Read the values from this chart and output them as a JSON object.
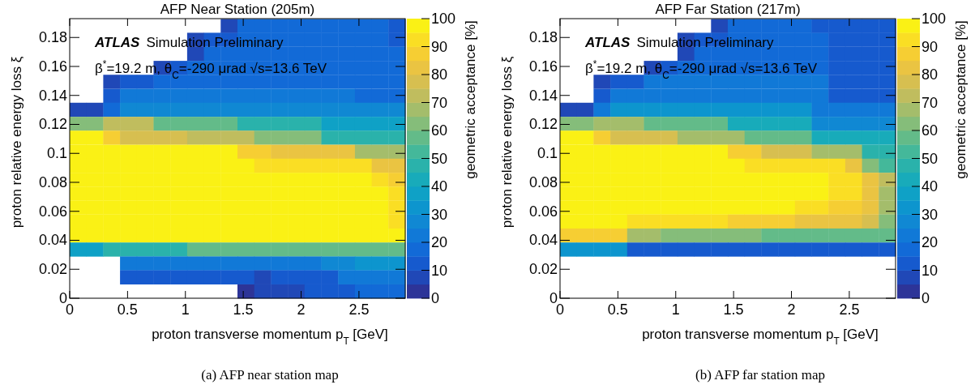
{
  "chart_data": [
    {
      "type": "heatmap",
      "title": "AFP Near Station (205m)",
      "xlabel": "proton transverse momentum p$_{T}$ [GeV]",
      "ylabel": "proton relative energy loss ξ",
      "clabel": "geometric acceptance [%]",
      "annotations": [
        "ATLAS Simulation Preliminary",
        "β$^{*}$=19.2 m, θ$_{C}$=-290 μrad   √s=13.6 TeV",
        "(a) AFP near station map"
      ],
      "xlim": [
        0,
        2.9
      ],
      "xticks": [
        0,
        0.5,
        1,
        1.5,
        2,
        2.5
      ],
      "ylim": [
        0,
        0.193
      ],
      "yticks": [
        0,
        0.02,
        0.04,
        0.06,
        0.08,
        0.1,
        0.12,
        0.14,
        0.16,
        0.18
      ],
      "clim": [
        0,
        100
      ],
      "cticks": [
        0,
        10,
        20,
        30,
        40,
        50,
        60,
        70,
        80,
        90,
        100
      ],
      "x": [
        0.0725,
        0.2175,
        0.3625,
        0.5075,
        0.6525,
        0.7975,
        0.9425,
        1.0875,
        1.2325,
        1.3775,
        1.5225,
        1.6675,
        1.8125,
        1.9575,
        2.1025,
        2.2475,
        2.3925,
        2.5375,
        2.6825,
        2.8275
      ],
      "y": [
        0.188,
        0.1785,
        0.1688,
        0.1591,
        0.1495,
        0.1398,
        0.1302,
        0.1205,
        0.1109,
        0.1012,
        0.0916,
        0.0819,
        0.0723,
        0.0627,
        0.053,
        0.0434,
        0.0337,
        0.0241,
        0.0145,
        0.0048
      ],
      "cells": [
        [
          null,
          null,
          null,
          null,
          null,
          null,
          null,
          null,
          null,
          5,
          15,
          15,
          15,
          15,
          15,
          15,
          15,
          15,
          15,
          12
        ],
        [
          null,
          null,
          null,
          null,
          null,
          null,
          null,
          8,
          12,
          12,
          15,
          15,
          15,
          15,
          15,
          15,
          15,
          15,
          15,
          12
        ],
        [
          null,
          null,
          null,
          null,
          null,
          null,
          null,
          8,
          15,
          15,
          15,
          15,
          15,
          15,
          15,
          15,
          15,
          15,
          15,
          15
        ],
        [
          null,
          null,
          null,
          null,
          null,
          8,
          12,
          18,
          18,
          18,
          18,
          18,
          18,
          18,
          18,
          18,
          18,
          18,
          18,
          15
        ],
        [
          null,
          null,
          5,
          10,
          12,
          18,
          18,
          18,
          18,
          18,
          18,
          18,
          18,
          18,
          18,
          18,
          18,
          18,
          15,
          15
        ],
        [
          null,
          null,
          10,
          20,
          20,
          20,
          20,
          20,
          20,
          20,
          20,
          20,
          20,
          20,
          20,
          20,
          20,
          17,
          17,
          17
        ],
        [
          8,
          8,
          18,
          28,
          28,
          28,
          28,
          28,
          28,
          28,
          28,
          28,
          28,
          28,
          28,
          28,
          28,
          28,
          28,
          28
        ],
        [
          60,
          60,
          70,
          70,
          70,
          55,
          55,
          55,
          55,
          55,
          45,
          45,
          45,
          45,
          45,
          35,
          35,
          35,
          35,
          35
        ],
        [
          100,
          100,
          88,
          78,
          78,
          78,
          78,
          70,
          70,
          70,
          70,
          60,
          60,
          60,
          60,
          48,
          48,
          48,
          48,
          48
        ],
        [
          100,
          100,
          100,
          100,
          100,
          100,
          95,
          95,
          95,
          95,
          88,
          88,
          80,
          80,
          80,
          80,
          80,
          68,
          68,
          68
        ],
        [
          100,
          100,
          100,
          100,
          100,
          100,
          100,
          100,
          100,
          100,
          100,
          93,
          93,
          93,
          93,
          93,
          93,
          93,
          80,
          80
        ],
        [
          100,
          100,
          100,
          100,
          100,
          100,
          100,
          100,
          100,
          100,
          100,
          100,
          100,
          100,
          100,
          100,
          100,
          98,
          93,
          88
        ],
        [
          100,
          100,
          100,
          100,
          100,
          100,
          100,
          100,
          100,
          100,
          100,
          100,
          100,
          100,
          100,
          100,
          100,
          100,
          97,
          92
        ],
        [
          100,
          100,
          100,
          100,
          100,
          100,
          100,
          100,
          100,
          100,
          100,
          100,
          100,
          100,
          100,
          100,
          100,
          100,
          97,
          92
        ],
        [
          100,
          100,
          100,
          100,
          100,
          100,
          100,
          100,
          100,
          100,
          100,
          100,
          100,
          100,
          100,
          100,
          100,
          100,
          97,
          92
        ],
        [
          95,
          95,
          95,
          95,
          95,
          95,
          95,
          95,
          95,
          95,
          95,
          95,
          95,
          95,
          95,
          95,
          95,
          95,
          95,
          95
        ],
        [
          35,
          35,
          45,
          45,
          45,
          45,
          45,
          55,
          55,
          55,
          55,
          55,
          55,
          55,
          55,
          55,
          55,
          55,
          55,
          55
        ],
        [
          null,
          null,
          null,
          20,
          20,
          20,
          20,
          20,
          20,
          20,
          20,
          20,
          20,
          20,
          20,
          25,
          25,
          30,
          30,
          30
        ],
        [
          null,
          null,
          null,
          10,
          10,
          10,
          10,
          10,
          10,
          10,
          10,
          8,
          14,
          14,
          14,
          14,
          22,
          22,
          22,
          22
        ],
        [
          null,
          null,
          null,
          null,
          null,
          null,
          null,
          null,
          null,
          null,
          4,
          6,
          6,
          6,
          12,
          12,
          12,
          18,
          18,
          18
        ]
      ]
    },
    {
      "type": "heatmap",
      "title": "AFP Far Station (217m)",
      "xlabel": "proton transverse momentum p$_{T}$ [GeV]",
      "ylabel": "proton relative energy loss ξ",
      "clabel": "geometric acceptance [%]",
      "annotations": [
        "ATLAS Simulation Preliminary",
        "β$^{*}$=19.2 m, θ$_{C}$=-290 μrad   √s=13.6 TeV",
        "(b) AFP far station map"
      ],
      "xlim": [
        0,
        2.9
      ],
      "xticks": [
        0,
        0.5,
        1,
        1.5,
        2,
        2.5
      ],
      "ylim": [
        0,
        0.193
      ],
      "yticks": [
        0,
        0.02,
        0.04,
        0.06,
        0.08,
        0.1,
        0.12,
        0.14,
        0.16,
        0.18
      ],
      "clim": [
        0,
        100
      ],
      "cticks": [
        0,
        10,
        20,
        30,
        40,
        50,
        60,
        70,
        80,
        90,
        100
      ],
      "x": [
        0.0725,
        0.2175,
        0.3625,
        0.5075,
        0.6525,
        0.7975,
        0.9425,
        1.0875,
        1.2325,
        1.3775,
        1.5225,
        1.6675,
        1.8125,
        1.9575,
        2.1025,
        2.2475,
        2.3925,
        2.5375,
        2.6825,
        2.8275
      ],
      "y": [
        0.188,
        0.1785,
        0.1688,
        0.1591,
        0.1495,
        0.1398,
        0.1302,
        0.1205,
        0.1109,
        0.1012,
        0.0916,
        0.0819,
        0.0723,
        0.0627,
        0.053,
        0.0434,
        0.0337
      ],
      "cells": [
        [
          null,
          null,
          null,
          null,
          null,
          null,
          null,
          null,
          null,
          5,
          15,
          15,
          15,
          15,
          15,
          10,
          10,
          10,
          10,
          10
        ],
        [
          null,
          null,
          null,
          null,
          null,
          null,
          null,
          8,
          12,
          12,
          15,
          15,
          15,
          15,
          15,
          15,
          10,
          10,
          10,
          10
        ],
        [
          null,
          null,
          null,
          null,
          null,
          null,
          null,
          8,
          15,
          15,
          15,
          15,
          15,
          15,
          15,
          15,
          10,
          10,
          10,
          10
        ],
        [
          null,
          null,
          null,
          null,
          null,
          8,
          12,
          18,
          18,
          18,
          18,
          18,
          18,
          18,
          18,
          18,
          12,
          12,
          12,
          12
        ],
        [
          null,
          null,
          5,
          10,
          14,
          20,
          20,
          20,
          20,
          20,
          20,
          20,
          20,
          20,
          20,
          20,
          12,
          12,
          12,
          12
        ],
        [
          null,
          null,
          10,
          22,
          22,
          22,
          22,
          22,
          22,
          22,
          22,
          22,
          22,
          22,
          22,
          22,
          14,
          14,
          14,
          14
        ],
        [
          8,
          8,
          20,
          30,
          30,
          30,
          30,
          30,
          30,
          30,
          30,
          30,
          30,
          30,
          30,
          20,
          20,
          20,
          20,
          20
        ],
        [
          60,
          60,
          68,
          68,
          68,
          55,
          55,
          55,
          55,
          55,
          40,
          40,
          40,
          40,
          40,
          28,
          28,
          28,
          28,
          28
        ],
        [
          100,
          100,
          88,
          78,
          78,
          78,
          78,
          68,
          68,
          68,
          68,
          55,
          55,
          55,
          55,
          40,
          40,
          40,
          40,
          40
        ],
        [
          100,
          100,
          100,
          100,
          100,
          100,
          95,
          95,
          95,
          95,
          88,
          88,
          75,
          75,
          75,
          65,
          65,
          65,
          45,
          45
        ],
        [
          100,
          100,
          100,
          100,
          100,
          100,
          100,
          100,
          100,
          100,
          100,
          93,
          93,
          93,
          93,
          93,
          93,
          80,
          60,
          50
        ],
        [
          100,
          100,
          100,
          100,
          100,
          100,
          100,
          100,
          100,
          100,
          100,
          100,
          100,
          100,
          100,
          100,
          93,
          90,
          80,
          70
        ],
        [
          100,
          100,
          100,
          100,
          100,
          100,
          100,
          100,
          100,
          100,
          100,
          100,
          100,
          100,
          100,
          100,
          90,
          90,
          80,
          68
        ],
        [
          100,
          100,
          100,
          100,
          100,
          100,
          100,
          100,
          100,
          100,
          100,
          100,
          100,
          100,
          93,
          93,
          88,
          88,
          80,
          65
        ],
        [
          100,
          100,
          100,
          100,
          90,
          90,
          90,
          90,
          90,
          90,
          85,
          85,
          85,
          85,
          80,
          80,
          80,
          80,
          75,
          60
        ],
        [
          85,
          85,
          85,
          85,
          65,
          65,
          60,
          60,
          60,
          60,
          60,
          60,
          55,
          55,
          55,
          55,
          55,
          55,
          55,
          55
        ],
        [
          30,
          30,
          30,
          30,
          12,
          12,
          12,
          12,
          12,
          12,
          12,
          12,
          12,
          12,
          12,
          12,
          12,
          12,
          12,
          12
        ]
      ]
    }
  ]
}
